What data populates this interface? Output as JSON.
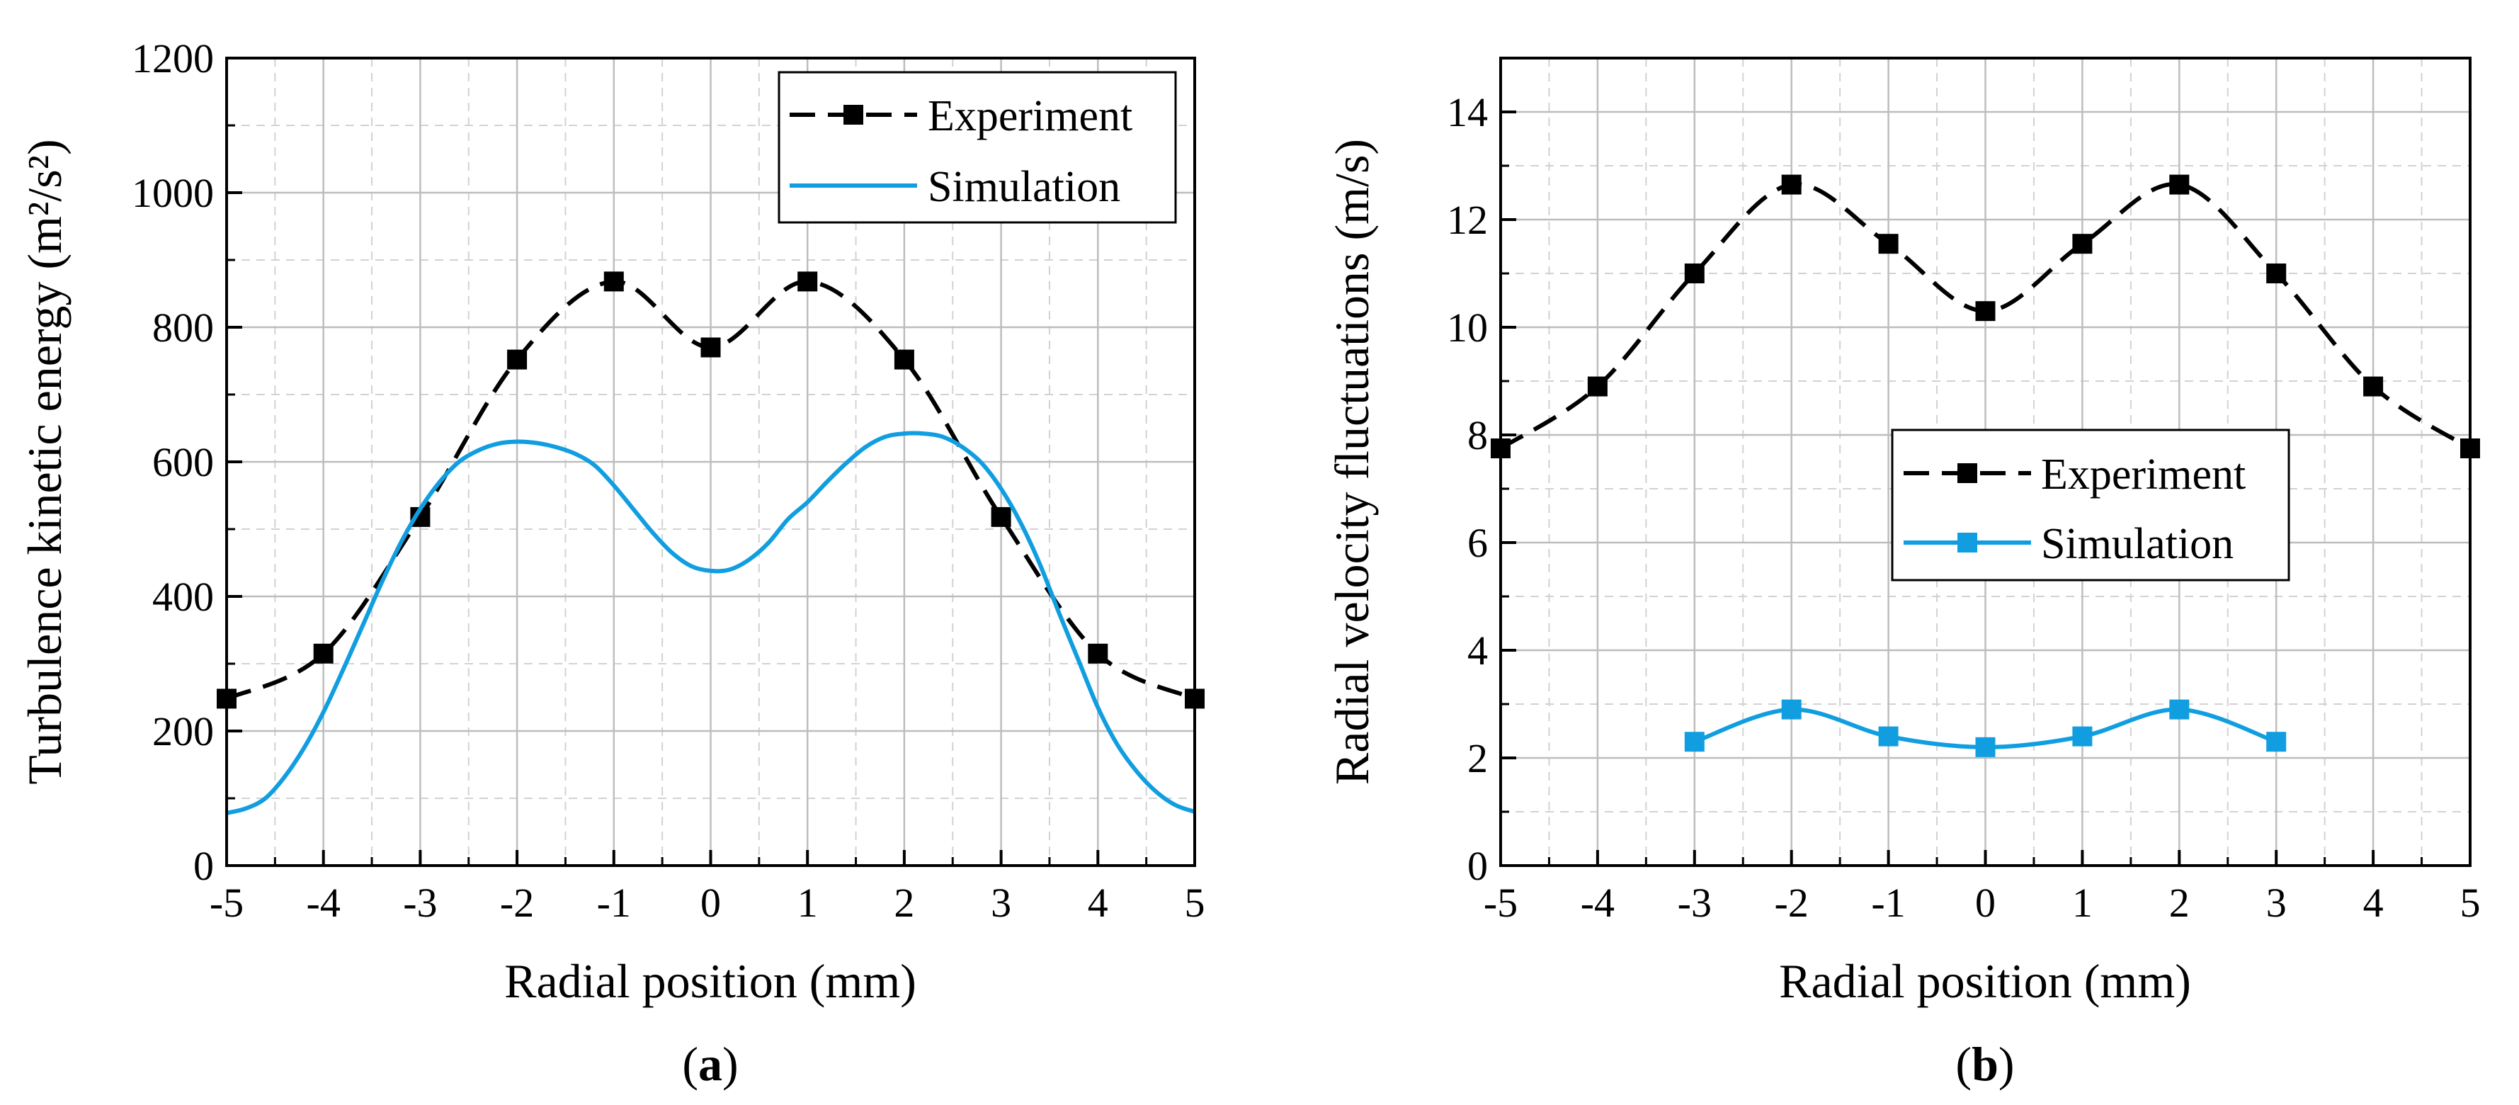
{
  "figure": {
    "panels": [
      {
        "prefix": "(",
        "letter": "a",
        "suffix": ")"
      },
      {
        "prefix": "(",
        "letter": "b",
        "suffix": ")"
      }
    ]
  },
  "chart_data": [
    {
      "type": "line",
      "xlabel": "Radial position (mm)",
      "ylabel": "Turbulence kinetic energy (m²/s²)",
      "xlim": [
        -5,
        5
      ],
      "ylim": [
        0,
        1200
      ],
      "xticks": [
        -5,
        -4,
        -3,
        -2,
        -1,
        0,
        1,
        2,
        3,
        4,
        5
      ],
      "yticks": [
        0,
        200,
        400,
        600,
        800,
        1000,
        1200
      ],
      "grid": true,
      "legend_position": "top-right",
      "series": [
        {
          "name": "Experiment",
          "style": "dashed-square-markers",
          "color": "#000000",
          "x": [
            -5,
            -4,
            -3,
            -2,
            -1,
            0,
            1,
            2,
            3,
            4,
            5
          ],
          "y": [
            248,
            315,
            518,
            752,
            868,
            770,
            868,
            752,
            518,
            315,
            248
          ]
        },
        {
          "name": "Simulation",
          "style": "solid",
          "color": "#119ee0",
          "x": [
            -5,
            -4.8,
            -4.6,
            -4.4,
            -4.2,
            -4,
            -3.8,
            -3.6,
            -3.4,
            -3.2,
            -3,
            -2.8,
            -2.6,
            -2.4,
            -2.2,
            -2,
            -1.8,
            -1.6,
            -1.4,
            -1.2,
            -1,
            -0.8,
            -0.6,
            -0.4,
            -0.2,
            0,
            0.2,
            0.4,
            0.6,
            0.8,
            1,
            1.2,
            1.4,
            1.6,
            1.8,
            2,
            2.2,
            2.4,
            2.6,
            2.8,
            3,
            3.2,
            3.4,
            3.6,
            3.8,
            4,
            4.2,
            4.4,
            4.6,
            4.8,
            5
          ],
          "y": [
            78,
            85,
            100,
            132,
            175,
            228,
            290,
            355,
            420,
            480,
            530,
            570,
            600,
            617,
            627,
            630,
            628,
            622,
            612,
            595,
            565,
            530,
            495,
            465,
            445,
            438,
            440,
            455,
            480,
            515,
            540,
            570,
            598,
            622,
            637,
            642,
            642,
            637,
            622,
            598,
            560,
            510,
            448,
            375,
            305,
            235,
            180,
            140,
            110,
            90,
            80
          ]
        }
      ]
    },
    {
      "type": "line",
      "xlabel": "Radial position (mm)",
      "ylabel": "Radial velocity fluctuations (m/s)",
      "xlim": [
        -5,
        5
      ],
      "ylim": [
        0,
        15
      ],
      "xticks": [
        -5,
        -4,
        -3,
        -2,
        -1,
        0,
        1,
        2,
        3,
        4,
        5
      ],
      "yticks": [
        0,
        2,
        4,
        6,
        8,
        10,
        12,
        14
      ],
      "grid": true,
      "legend_position": "center-right",
      "series": [
        {
          "name": "Experiment",
          "style": "dashed-square-markers",
          "color": "#000000",
          "x": [
            -5,
            -4,
            -3,
            -2,
            -1,
            0,
            1,
            2,
            3,
            4,
            5
          ],
          "y": [
            7.75,
            8.9,
            11.0,
            12.65,
            11.55,
            10.3,
            11.55,
            12.65,
            11.0,
            8.9,
            7.75
          ]
        },
        {
          "name": "Simulation",
          "style": "solid-square-markers",
          "color": "#119ee0",
          "x": [
            -3,
            -2,
            -1,
            0,
            1,
            2,
            3
          ],
          "y": [
            2.3,
            2.9,
            2.4,
            2.2,
            2.4,
            2.9,
            2.3
          ]
        }
      ]
    }
  ]
}
